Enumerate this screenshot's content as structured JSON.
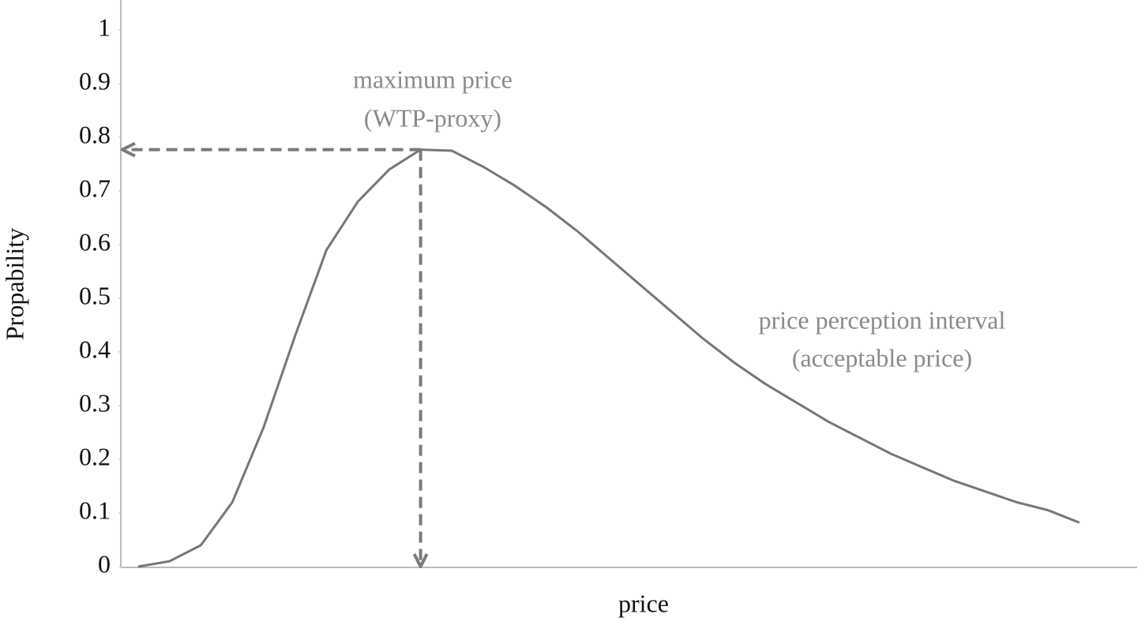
{
  "chart_data": {
    "type": "line",
    "x_label": "price",
    "y_label": "Propability",
    "annotations": [
      [
        "maximum price",
        "(WTP-proxy)"
      ],
      [
        "price perception interval",
        "(acceptable price)"
      ]
    ],
    "categories": [
      null,
      null,
      null,
      null,
      null,
      null,
      null,
      null,
      null,
      null,
      null,
      null,
      null,
      null,
      null,
      null,
      null,
      null,
      null,
      null,
      null,
      null,
      null,
      null,
      null,
      null,
      null,
      null,
      null,
      null,
      null
    ],
    "series": [
      {
        "name": null,
        "color": "#777777",
        "values": [
          0.0,
          0.01,
          0.04,
          0.12,
          0.26,
          0.43,
          0.59,
          0.68,
          0.74,
          0.777,
          0.775,
          0.745,
          0.71,
          0.67,
          0.625,
          0.575,
          0.525,
          0.475,
          0.425,
          0.38,
          0.34,
          0.305,
          0.27,
          0.24,
          0.21,
          0.185,
          0.16,
          0.14,
          0.12,
          0.105,
          0.082
        ]
      }
    ],
    "ylim": [
      0,
      1
    ],
    "yticks": [
      0,
      0.1,
      0.2,
      0.3,
      0.4,
      0.5,
      0.6,
      0.7,
      0.8,
      0.9,
      1
    ],
    "grid": false
  }
}
